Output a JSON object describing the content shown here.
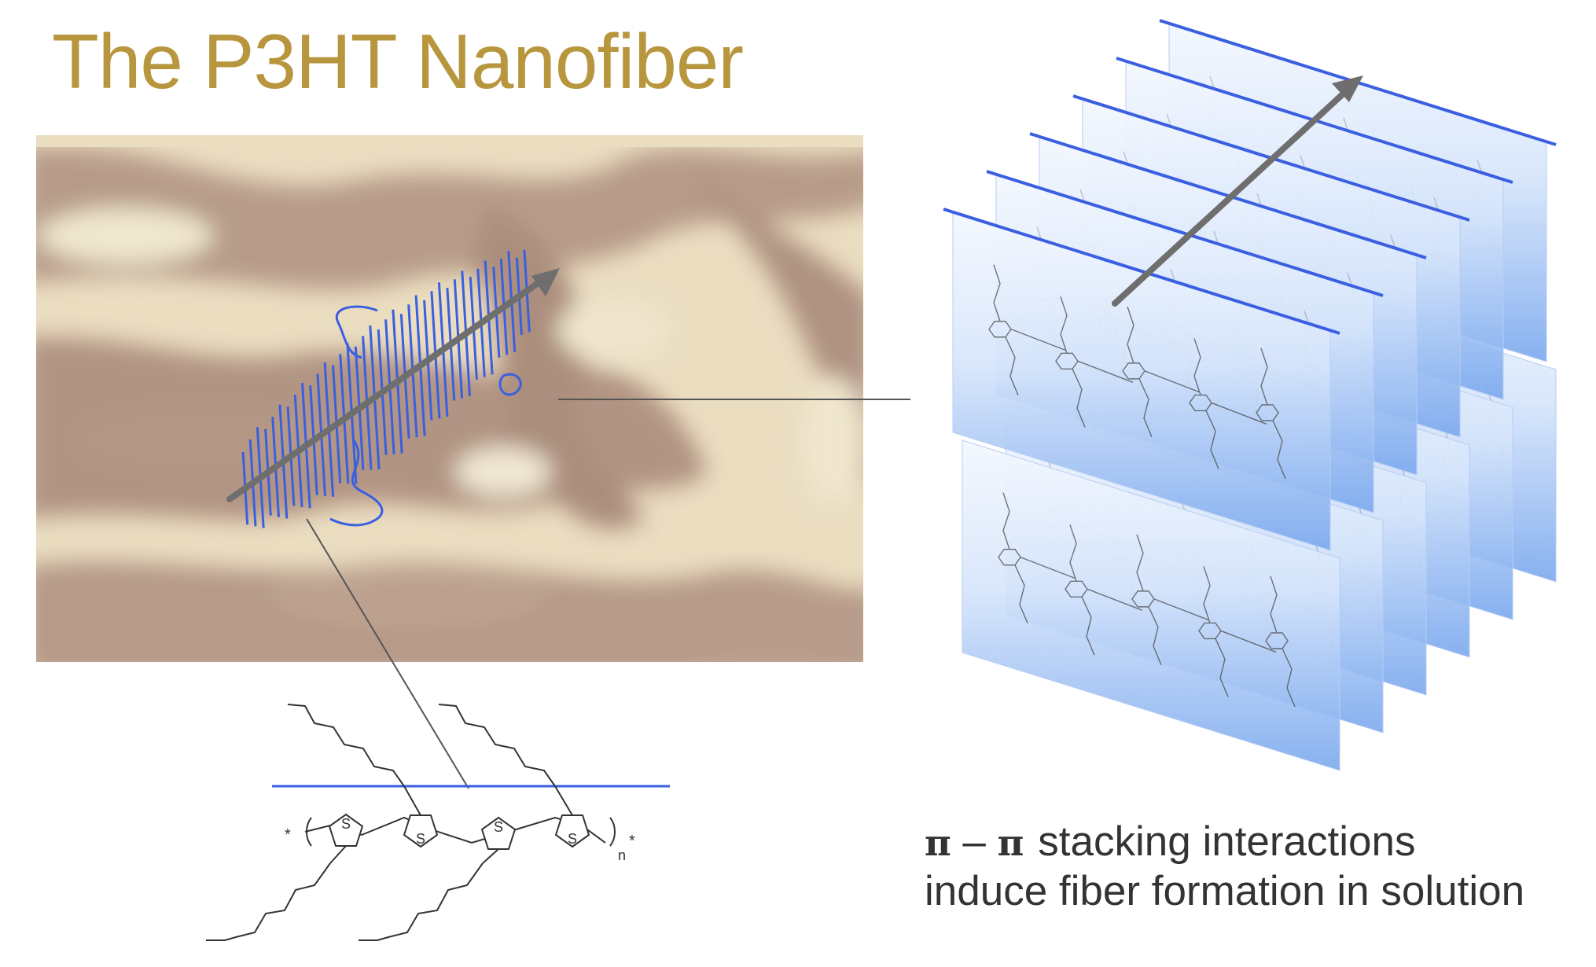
{
  "title": "The P3HT Nanofiber",
  "caption": {
    "pi_symbol_left": "π",
    "pi_dash": "–",
    "pi_symbol_right": "π",
    "line1_text": "stacking interactions",
    "line2": "induce fiber formation in solution"
  },
  "molecule": {
    "sulfur_label": "S",
    "end_group": "*",
    "repeat_subscript": "n"
  },
  "colors": {
    "title": "#b8963e",
    "stack_line": "#3a5fe0",
    "fiber_arrow": "#6e6e6e",
    "connector": "#555555",
    "panel_top": "#f2f7fe",
    "panel_bottom": "#7aa8ee",
    "micrograph_light": "#ece0c2",
    "micrograph_dark": "#9e7a67"
  },
  "icons": {
    "fiber_direction": "arrow-up-right-icon",
    "stack_direction": "arrow-up-right-icon"
  }
}
